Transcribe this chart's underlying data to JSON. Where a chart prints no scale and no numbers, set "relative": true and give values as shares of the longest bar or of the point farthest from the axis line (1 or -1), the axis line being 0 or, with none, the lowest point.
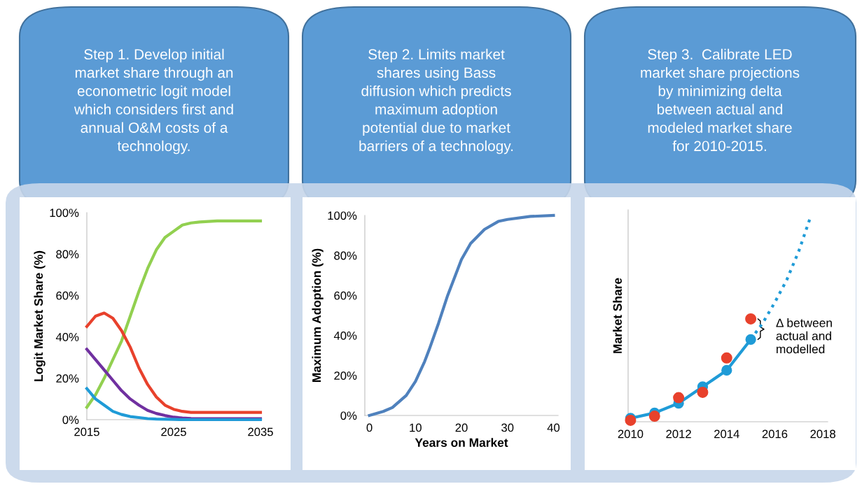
{
  "chart_data": [
    {
      "type": "line",
      "title": "Step 1. Develop initial\nmarket share through an\neconometric logit model\nwhich considers first and\nannual O&M costs of a\ntechnology.",
      "ylabel": "Logit Market Share (%)",
      "x": [
        2015,
        2016,
        2017,
        2018,
        2019,
        2020,
        2021,
        2022,
        2023,
        2024,
        2025,
        2026,
        2027,
        2028,
        2030,
        2032,
        2035
      ],
      "series": [
        {
          "color": "#92d050",
          "values": [
            6,
            12,
            20,
            29,
            38,
            50,
            62,
            73,
            82,
            88,
            91,
            94,
            95,
            95.5,
            96,
            96,
            96
          ]
        },
        {
          "color": "#e8412c",
          "values": [
            45,
            50,
            51.5,
            49,
            43,
            35,
            25,
            17,
            11,
            7,
            5,
            4,
            3.5,
            3.5,
            3.5,
            3.5,
            3.5
          ]
        },
        {
          "color": "#7030a0",
          "values": [
            34,
            29,
            24,
            19,
            14,
            10,
            7,
            4.5,
            3,
            2,
            1.2,
            0.8,
            0.6,
            0.5,
            0.5,
            0.5,
            0.5
          ]
        },
        {
          "color": "#1f9bd7",
          "values": [
            15,
            10,
            7,
            4,
            2.5,
            1.5,
            1,
            0.5,
            0.3,
            0.2,
            0.1,
            0,
            0,
            0,
            0,
            0,
            0
          ]
        }
      ],
      "xlim": [
        2015,
        2035
      ],
      "xticks": [
        2015,
        2025,
        2035
      ],
      "ylim": [
        0,
        100
      ],
      "yticks": [
        {
          "value": 0,
          "label": "0%"
        },
        {
          "value": 20,
          "label": "20%"
        },
        {
          "value": 40,
          "label": "40%"
        },
        {
          "value": 60,
          "label": "60%"
        },
        {
          "value": 80,
          "label": "80%"
        },
        {
          "value": 100,
          "label": "100%"
        }
      ]
    },
    {
      "type": "line",
      "title": "Step 2. Limits market\nshares using Bass\ndiffusion which predicts\nmaximum adoption\npotential due to market\nbarriers of a technology.",
      "xlabel": "Years on Market",
      "ylabel": "Maximum Adoption (%)",
      "x": [
        0,
        3,
        5,
        8,
        10,
        12,
        13,
        15,
        17,
        20,
        22,
        25,
        28,
        30,
        35,
        40
      ],
      "series": [
        {
          "color": "#4f81bd",
          "values": [
            0,
            2,
            4,
            10,
            17,
            27,
            33,
            46,
            60,
            78,
            86,
            93,
            97,
            98,
            99.5,
            100
          ]
        }
      ],
      "xlim": [
        -1,
        41
      ],
      "xticks": [
        0,
        10,
        20,
        30,
        40
      ],
      "ylim": [
        0,
        100
      ],
      "yticks": [
        {
          "value": 0,
          "label": "0%"
        },
        {
          "value": 20,
          "label": "20%"
        },
        {
          "value": 40,
          "label": "40%"
        },
        {
          "value": 60,
          "label": "60%"
        },
        {
          "value": 80,
          "label": "80%"
        },
        {
          "value": 100,
          "label": "100%"
        }
      ]
    },
    {
      "type": "line",
      "title": "Step 3.  Calibrate LED\nmarket share projections\nby minimizing delta\nbetween actual and\nmodeled market share\nfor 2010-2015.",
      "ylabel": "Market Share",
      "relative": true,
      "series": [
        {
          "color": "#1f9bd7",
          "marker": "circle",
          "x": [
            2010,
            2011,
            2012,
            2013,
            2014,
            2015
          ],
          "values": [
            0.017,
            0.043,
            0.09,
            0.17,
            0.25,
            0.4
          ]
        },
        {
          "color": "#1f9bd7",
          "line_style": "dotted",
          "x": [
            2015,
            2015.5,
            2016,
            2016.5,
            2017,
            2017.5
          ],
          "values": [
            0.4,
            0.48,
            0.58,
            0.69,
            0.83,
            1.0
          ]
        },
        {
          "type": "scatter",
          "color": "#e8412c",
          "marker": "circle",
          "x": [
            2010,
            2011,
            2012,
            2013,
            2014,
            2015
          ],
          "values": [
            0.007,
            0.027,
            0.117,
            0.143,
            0.31,
            0.5
          ]
        }
      ],
      "xlim": [
        2009.9,
        2018.2
      ],
      "xticks": [
        2010,
        2012,
        2014,
        2016,
        2018
      ],
      "annotations": [
        "Δ between\nactual and\nmodelled"
      ]
    }
  ]
}
